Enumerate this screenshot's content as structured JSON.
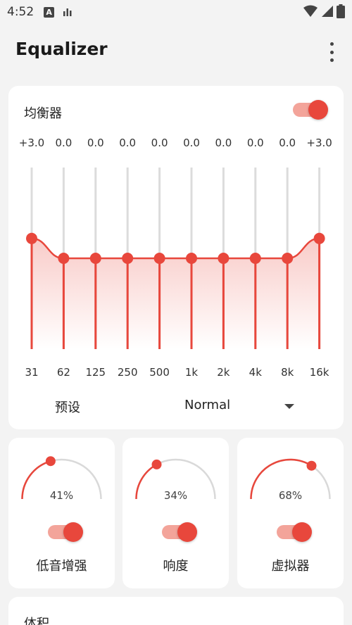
{
  "status": {
    "time": "4:52",
    "notification_letter": "A"
  },
  "header": {
    "title": "Equalizer"
  },
  "equalizer": {
    "title": "均衡器",
    "enabled": true,
    "accent": "#e8473c",
    "bands": [
      {
        "freq": "31",
        "gain_label": "+3.0",
        "gain": 3.0
      },
      {
        "freq": "62",
        "gain_label": "0.0",
        "gain": 0.0
      },
      {
        "freq": "125",
        "gain_label": "0.0",
        "gain": 0.0
      },
      {
        "freq": "250",
        "gain_label": "0.0",
        "gain": 0.0
      },
      {
        "freq": "500",
        "gain_label": "0.0",
        "gain": 0.0
      },
      {
        "freq": "1k",
        "gain_label": "0.0",
        "gain": 0.0
      },
      {
        "freq": "2k",
        "gain_label": "0.0",
        "gain": 0.0
      },
      {
        "freq": "4k",
        "gain_label": "0.0",
        "gain": 0.0
      },
      {
        "freq": "8k",
        "gain_label": "0.0",
        "gain": 0.0
      },
      {
        "freq": "16k",
        "gain_label": "+3.0",
        "gain": 3.0
      }
    ],
    "preset_label": "预设",
    "preset_value": "Normal"
  },
  "effects": {
    "bass": {
      "label": "低音增强",
      "value_text": "41%",
      "value": 0.41,
      "enabled": true
    },
    "loudness": {
      "label": "响度",
      "value_text": "34%",
      "value": 0.34,
      "enabled": true
    },
    "virtualizer": {
      "label": "虚拟器",
      "value_text": "68%",
      "value": 0.68,
      "enabled": true
    }
  },
  "volume": {
    "title": "体积"
  }
}
